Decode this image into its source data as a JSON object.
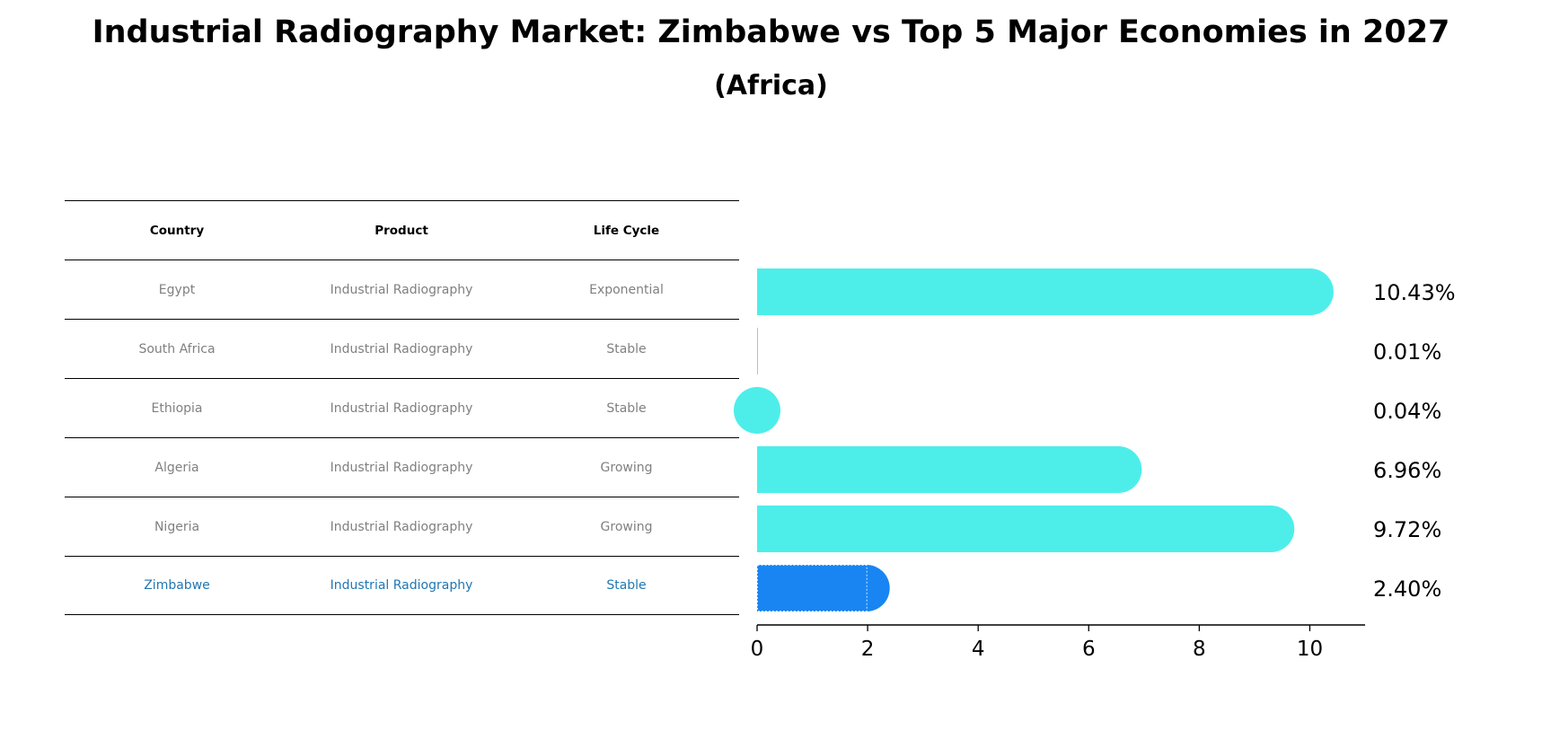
{
  "title": "Industrial Radiography Market: Zimbabwe vs Top 5 Major Economies in 2027",
  "subtitle": "(Africa)",
  "table": {
    "headers": [
      "Country",
      "Product",
      "Life Cycle"
    ],
    "rows": [
      {
        "country": "Egypt",
        "product": "Industrial Radiography",
        "lifecycle": "Exponential"
      },
      {
        "country": "South Africa",
        "product": "Industrial Radiography",
        "lifecycle": "Stable"
      },
      {
        "country": "Ethiopia",
        "product": "Industrial Radiography",
        "lifecycle": "Stable"
      },
      {
        "country": "Algeria",
        "product": "Industrial Radiography",
        "lifecycle": "Growing"
      },
      {
        "country": "Nigeria",
        "product": "Industrial Radiography",
        "lifecycle": "Growing"
      },
      {
        "country": "Zimbabwe",
        "product": "Industrial Radiography",
        "lifecycle": "Stable"
      }
    ]
  },
  "chart_data": {
    "type": "bar",
    "orientation": "horizontal",
    "title": "Industrial Radiography Market: Zimbabwe vs Top 5 Major Economies in 2027",
    "subtitle": "(Africa)",
    "categories": [
      "Egypt",
      "South Africa",
      "Ethiopia",
      "Algeria",
      "Nigeria",
      "Zimbabwe"
    ],
    "values": [
      10.43,
      0.01,
      0.04,
      6.96,
      9.72,
      2.4
    ],
    "value_labels": [
      "10.43%",
      "0.01%",
      "0.04%",
      "6.96%",
      "9.72%",
      "2.40%"
    ],
    "xlim": [
      0,
      11
    ],
    "xticks": [
      0,
      2,
      4,
      6,
      8,
      10
    ],
    "xlabel": "",
    "ylabel": "",
    "highlight": "Zimbabwe",
    "colors": {
      "default": "#4deeea",
      "highlight": "#1885f2",
      "highlight_text": "#1f77b4"
    }
  }
}
